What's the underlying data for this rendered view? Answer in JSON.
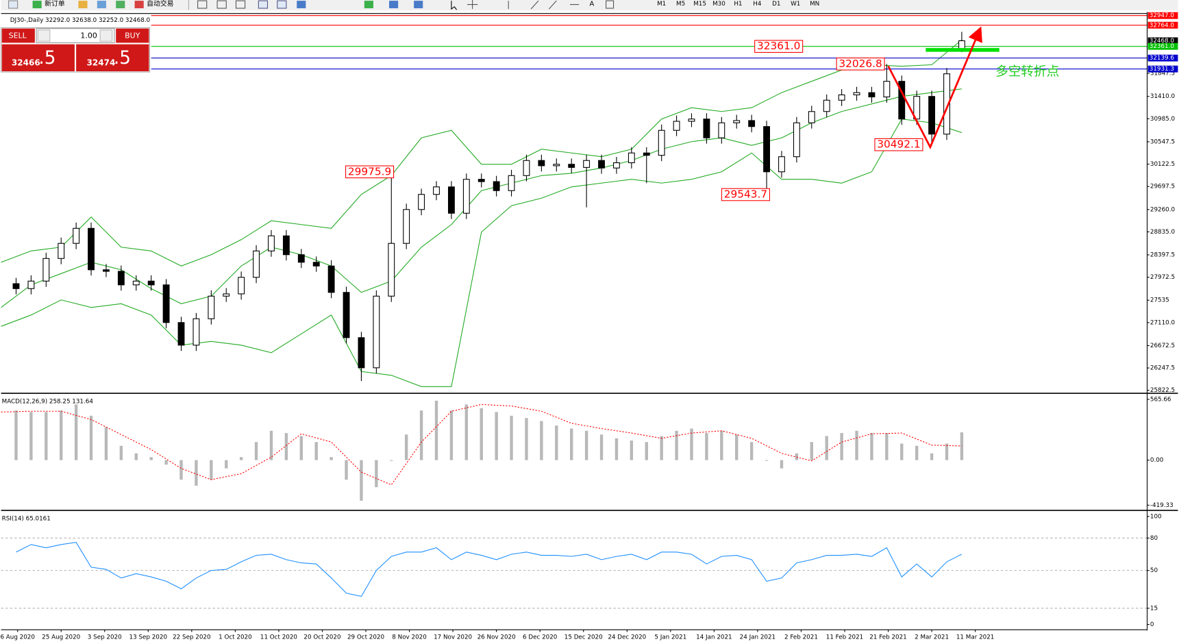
{
  "toolbar": {
    "new_order": "新订单",
    "auto_trading": "自动交易",
    "timeframes": [
      "M1",
      "M5",
      "M15",
      "M30",
      "H1",
      "H4",
      "D1",
      "W1",
      "MN"
    ]
  },
  "trade_panel": {
    "sell": "SELL",
    "buy": "BUY",
    "lot": "1.00",
    "sell_price": "32466",
    "sell_frac": ".5",
    "buy_price": "32474",
    "buy_frac": ".5"
  },
  "chart_data": [
    {
      "type": "candlestick",
      "title": "DJ30-,Daily  32292.0 32638.0 32252.0 32468.0",
      "callout": "多空转折点",
      "color_up": "#ffffff",
      "color_down": "#000000",
      "xlim": [
        0,
        76.35
      ],
      "ylim": [
        25780,
        32986
      ],
      "yticks": [
        25822.5,
        26247.5,
        26672.5,
        {
          "value": 27110.0,
          "label": "27110.0"
        },
        27535.0,
        27972.5,
        28397.5,
        {
          "value": 28835.0,
          "label": "28835.0"
        },
        {
          "value": 29260.0,
          "label": "29260.0"
        },
        29697.5,
        30122.5,
        30547.5,
        {
          "value": 30985.0,
          "label": "30985.0"
        },
        {
          "value": 31410.0,
          "label": "31410.0"
        },
        31847.5
      ],
      "x": [
        1,
        2,
        3,
        4,
        5,
        6,
        7,
        8,
        9,
        10,
        11,
        12,
        13,
        14,
        15,
        16,
        17,
        18,
        19,
        20,
        21,
        22,
        23,
        24,
        25,
        26,
        27,
        28,
        29,
        30,
        31,
        32,
        33,
        34,
        35,
        36,
        37,
        38,
        39,
        40,
        41,
        42,
        43,
        44,
        45,
        46,
        47,
        48,
        49,
        50,
        51,
        52,
        53,
        54,
        55,
        56,
        57,
        58,
        59,
        60,
        61,
        62,
        63,
        64
      ],
      "open": [
        27850,
        27756,
        27899,
        28329,
        28616,
        28902,
        28114,
        28085,
        27827,
        27899,
        27827,
        27111,
        26681,
        27183,
        27613,
        27656,
        27971,
        28472,
        28759,
        28401,
        28257,
        28186,
        27684,
        26824,
        26251,
        27613,
        28616,
        29260,
        29547,
        29690,
        29189,
        29834,
        29790,
        29619,
        29905,
        30192,
        30092,
        30120,
        30060,
        30192,
        30049,
        30149,
        30335,
        30290,
        30765,
        30937,
        30980,
        30622,
        30908,
        30951,
        30837,
        29977,
        30264,
        30908,
        31123,
        31338,
        31439,
        31482,
        31400,
        31697,
        30980,
        31410,
        30693,
        32292.0
      ],
      "high": [
        27960,
        28009,
        28439,
        28726,
        29012,
        29012,
        28224,
        28195,
        28009,
        28009,
        27937,
        27221,
        27293,
        27723,
        27766,
        28081,
        28582,
        28869,
        28869,
        28511,
        28367,
        28296,
        27794,
        26934,
        27723,
        29975.9,
        29370,
        29657,
        29800,
        29800,
        29944,
        29944,
        29900,
        30015,
        30302,
        30302,
        30230,
        30230,
        30302,
        30302,
        30259,
        30445,
        30445,
        30875,
        31047,
        31090,
        31090,
        31018,
        31061,
        31061,
        30947,
        30374,
        31018,
        31233,
        31448,
        31549,
        31592,
        31592,
        32026.8,
        31807,
        31520,
        31520,
        31950,
        32638.0
      ],
      "low": [
        27646,
        27646,
        27789,
        28219,
        28506,
        28004,
        27975,
        27717,
        27717,
        27717,
        27001,
        26571,
        26571,
        27073,
        27503,
        27546,
        27861,
        28362,
        28291,
        28147,
        28076,
        27574,
        26714,
        26000,
        26141,
        27503,
        28506,
        29150,
        29437,
        29079,
        29079,
        29680,
        29509,
        29509,
        29795,
        29982,
        29982,
        29950,
        29300,
        29939,
        29939,
        30039,
        29760,
        30180,
        30655,
        30827,
        30512,
        30512,
        30798,
        30727,
        29543.7,
        29867,
        30154,
        30798,
        31013,
        31228,
        31329,
        31290,
        31290,
        30870,
        30870,
        30492.1,
        30583,
        32252.0
      ],
      "close": [
        27756,
        27899,
        28329,
        28616,
        28902,
        28114,
        28085,
        27827,
        27899,
        27827,
        27111,
        26681,
        27183,
        27613,
        27656,
        27971,
        28472,
        28759,
        28401,
        28257,
        28186,
        27684,
        26824,
        26251,
        27613,
        28616,
        29260,
        29547,
        29690,
        29189,
        29834,
        29790,
        29619,
        29905,
        30192,
        30092,
        30120,
        30060,
        30192,
        30049,
        30149,
        30335,
        30290,
        30765,
        30937,
        30980,
        30622,
        30908,
        30951,
        30837,
        29977,
        30264,
        30908,
        31123,
        31338,
        31439,
        31482,
        31400,
        31697,
        30980,
        31410,
        30693,
        31840,
        32468.0
      ],
      "bands": [
        {
          "color": "#22aa22",
          "x": [
            0,
            2,
            4,
            6,
            8,
            10,
            12,
            14,
            16,
            18,
            20,
            22,
            24,
            26,
            28,
            30,
            32,
            34,
            36,
            38,
            40,
            42,
            44,
            46,
            48,
            50,
            52,
            54,
            56,
            58,
            60,
            62,
            64
          ],
          "values": [
            28257,
            28472,
            28544,
            29117,
            28544,
            28472,
            28186,
            28401,
            28687,
            29046,
            28974,
            28902,
            29547,
            29905,
            30622,
            30765,
            30120,
            30120,
            30407,
            30335,
            30264,
            30407,
            30980,
            31195,
            31123,
            31195,
            31482,
            31697,
            31912,
            32012,
            31983,
            32012,
            32485
          ]
        },
        {
          "color": "#22aa22",
          "x": [
            0,
            2,
            4,
            6,
            8,
            10,
            12,
            14,
            16,
            18,
            20,
            22,
            24,
            26,
            28,
            30,
            32,
            34,
            36,
            38,
            40,
            42,
            44,
            46,
            48,
            50,
            52,
            54,
            56,
            58,
            60,
            62,
            64
          ],
          "values": [
            27398,
            27827,
            28042,
            28257,
            28114,
            27756,
            27469,
            27613,
            28186,
            28544,
            28401,
            28186,
            27684,
            27899,
            28544,
            28974,
            29619,
            29762,
            29905,
            29948,
            30049,
            30192,
            30407,
            30550,
            30622,
            30479,
            30622,
            30908,
            31123,
            31267,
            31410,
            31482,
            31553
          ]
        },
        {
          "color": "#22aa22",
          "x": [
            0,
            2,
            4,
            6,
            8,
            10,
            12,
            14,
            16,
            18,
            20,
            22,
            24,
            26,
            28,
            30,
            32,
            34,
            36,
            38,
            40,
            42,
            44,
            46,
            48,
            50,
            52,
            54,
            56,
            58,
            60,
            62,
            64
          ],
          "values": [
            27039,
            27254,
            27541,
            27398,
            27469,
            27254,
            26681,
            26753,
            26681,
            26538,
            26896,
            27254,
            26180,
            26108,
            25893,
            25893,
            28831,
            29332,
            29475,
            29690,
            29762,
            29834,
            29762,
            29834,
            29977,
            30335,
            29834,
            29834,
            29762,
            29977,
            30980,
            30908,
            30722
          ]
        }
      ],
      "levels": [
        {
          "value": 32947.0,
          "label": "32947.0",
          "color": "#ff0000"
        },
        {
          "value": 32764.0,
          "label": "32764.0",
          "color": "#ff0000"
        },
        {
          "value": 32468.0,
          "label": "32468.0",
          "color": "#000000"
        },
        {
          "value": 32361.0,
          "label": "32361.0",
          "color": "#00c000"
        },
        {
          "value": 32139.6,
          "label": "32139.6",
          "color": "#0000cc"
        },
        {
          "value": 31931.3,
          "label": "31931.3",
          "color": "#0000cc"
        }
      ],
      "annotations": [
        {
          "value": 32361.0,
          "label": "32361.0",
          "x": 53.4
        },
        {
          "value": 32026.8,
          "label": "32026.8",
          "x": 58.85
        },
        {
          "value": 29975.9,
          "label": "29975.9",
          "x": 26.15
        },
        {
          "value": 30492.1,
          "label": "30492.1",
          "x": 61.4
        },
        {
          "value": 29543.7,
          "label": "29543.7",
          "x": 51.2
        }
      ]
    },
    {
      "type": "bar",
      "title": "MACD(12,26,9) 258.25 131.64",
      "color": "#b8b8b8",
      "xlim": [
        0,
        76.35
      ],
      "ylim": [
        -454,
        608
      ],
      "yticks": [
        565.66,
        {
          "value": 0,
          "label": "0.00"
        },
        -419.33
      ],
      "x": [
        1,
        2,
        3,
        4,
        5,
        6,
        7,
        8,
        9,
        10,
        11,
        12,
        13,
        14,
        15,
        16,
        17,
        18,
        19,
        20,
        21,
        22,
        23,
        24,
        25,
        26,
        27,
        28,
        29,
        30,
        31,
        32,
        33,
        34,
        35,
        36,
        37,
        38,
        39,
        40,
        41,
        42,
        43,
        44,
        45,
        46,
        47,
        48,
        49,
        50,
        51,
        52,
        53,
        54,
        55,
        56,
        57,
        58,
        59,
        60,
        61,
        62,
        63,
        64
      ],
      "values": [
        462,
        448,
        448,
        462,
        518,
        413,
        308,
        133,
        63,
        28,
        -42,
        -182,
        -238,
        -182,
        -77,
        28,
        168,
        273,
        252,
        224,
        168,
        28,
        -182,
        -378,
        -252,
        -7,
        238,
        462,
        553,
        462,
        518,
        483,
        448,
        413,
        392,
        364,
        322,
        294,
        273,
        238,
        203,
        182,
        168,
        224,
        273,
        294,
        252,
        273,
        238,
        168,
        -7,
        -77,
        63,
        168,
        224,
        252,
        273,
        252,
        252,
        154,
        133,
        63,
        154,
        258.25
      ],
      "signal": {
        "color": "#ff0000",
        "x": [
          0,
          2,
          4,
          6,
          8,
          10,
          12,
          14,
          16,
          18,
          20,
          22,
          24,
          26,
          28,
          30,
          32,
          34,
          36,
          38,
          40,
          42,
          44,
          46,
          48,
          50,
          52,
          54,
          56,
          58,
          60,
          62,
          64
        ],
        "values": [
          448,
          455,
          455,
          378,
          238,
          98,
          -77,
          -182,
          -126,
          28,
          245,
          168,
          -112,
          -230,
          168,
          455,
          518,
          504,
          455,
          343,
          294,
          252,
          203,
          252,
          273,
          203,
          63,
          -7,
          168,
          245,
          252,
          140,
          131.64
        ]
      }
    },
    {
      "type": "line",
      "title": "RSI(14) 65.0161",
      "color": "#1e8fff",
      "xlim": [
        0,
        76.35
      ],
      "ylim": [
        -4.2,
        104.2
      ],
      "yticks": [
        100,
        80,
        50,
        15,
        0
      ],
      "levels": [
        80,
        50,
        15
      ],
      "x": [
        1,
        2,
        3,
        4,
        5,
        6,
        7,
        8,
        9,
        10,
        11,
        12,
        13,
        14,
        15,
        16,
        17,
        18,
        19,
        20,
        21,
        22,
        23,
        24,
        25,
        26,
        27,
        28,
        29,
        30,
        31,
        32,
        33,
        34,
        35,
        36,
        37,
        38,
        39,
        40,
        41,
        42,
        43,
        44,
        45,
        46,
        47,
        48,
        49,
        50,
        51,
        52,
        53,
        54,
        55,
        56,
        57,
        58,
        59,
        60,
        61,
        62,
        63,
        64
      ],
      "values": [
        67,
        74,
        71,
        74,
        76,
        53,
        51,
        43,
        47,
        44,
        40,
        33,
        43,
        50,
        51,
        58,
        64,
        65,
        60,
        57,
        56,
        43,
        29,
        26,
        50,
        63,
        67,
        67,
        71,
        60,
        67,
        64,
        60,
        65,
        67,
        64,
        64,
        63,
        65,
        60,
        63,
        65,
        60,
        67,
        67,
        65,
        56,
        63,
        64,
        60,
        40,
        43,
        57,
        60,
        64,
        64,
        65,
        63,
        71,
        44,
        56,
        44,
        58,
        65.0161
      ],
      "xticks": [
        {
          "value": 1.1,
          "label": "6 Aug 2020"
        },
        {
          "value": 4.0,
          "label": "25 Aug 2020"
        },
        {
          "value": 6.9,
          "label": "3 Sep 2020"
        },
        {
          "value": 9.8,
          "label": "13 Sep 2020"
        },
        {
          "value": 12.7,
          "label": "22 Sep 2020"
        },
        {
          "value": 15.6,
          "label": "1 Oct 2020"
        },
        {
          "value": 18.5,
          "label": "11 Oct 2020"
        },
        {
          "value": 21.4,
          "label": "20 Oct 2020"
        },
        {
          "value": 24.3,
          "label": "29 Oct 2020"
        },
        {
          "value": 27.2,
          "label": "8 Nov 2020"
        },
        {
          "value": 30.1,
          "label": "17 Nov 2020"
        },
        {
          "value": 33.0,
          "label": "26 Nov 2020"
        },
        {
          "value": 35.9,
          "label": "6 Dec 2020"
        },
        {
          "value": 38.8,
          "label": "15 Dec 2020"
        },
        {
          "value": 41.7,
          "label": "24 Dec 2020"
        },
        {
          "value": 44.6,
          "label": "5 Jan 2021"
        },
        {
          "value": 47.5,
          "label": "14 Jan 2021"
        },
        {
          "value": 50.4,
          "label": "24 Jan 2021"
        },
        {
          "value": 53.3,
          "label": "2 Feb 2021"
        },
        {
          "value": 56.2,
          "label": "11 Feb 2021"
        },
        {
          "value": 59.1,
          "label": "21 Feb 2021"
        },
        {
          "value": 62.0,
          "label": "2 Mar 2021"
        },
        {
          "value": 64.9,
          "label": "11 Mar 2021"
        }
      ]
    }
  ]
}
